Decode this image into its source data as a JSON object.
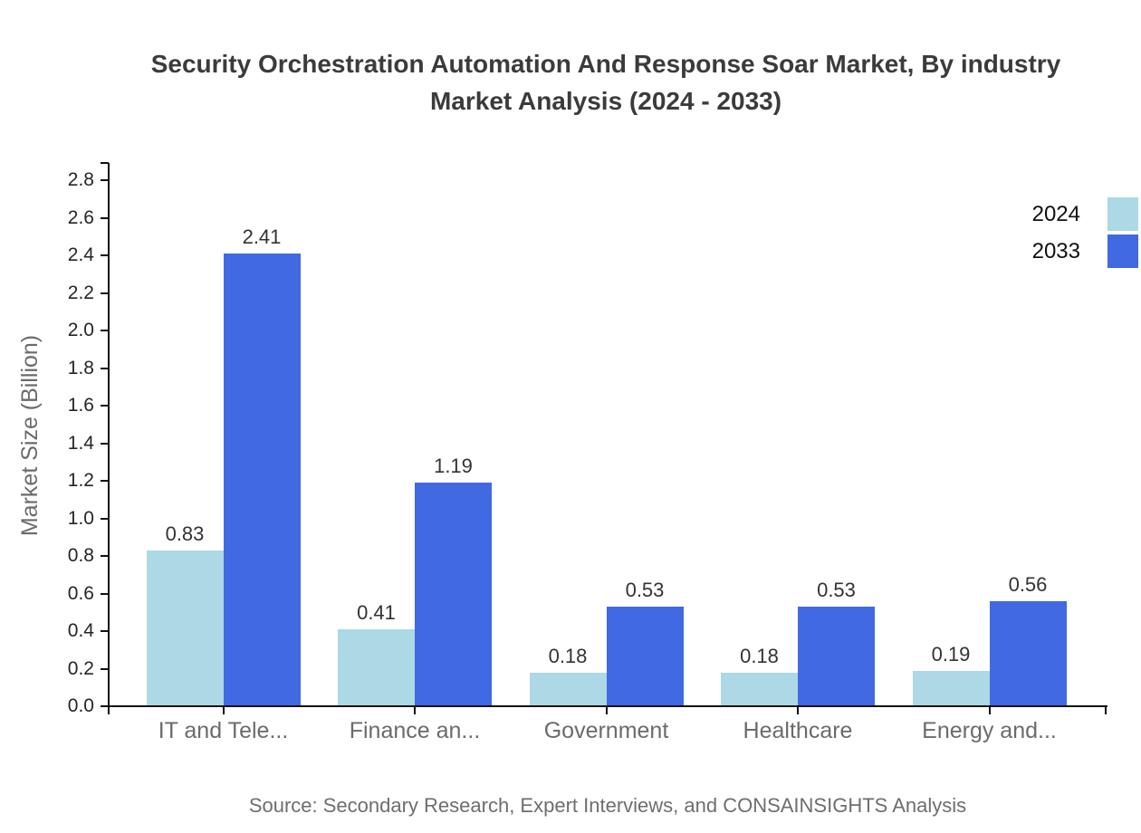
{
  "page": {
    "background": "#ffffff"
  },
  "title": {
    "full": "Security Orchestration Automation And Response Soar Market, By industry Market Analysis (2024 - 2033)",
    "lines": [
      "Security Orchestration Automation And Response Soar Market, By industry",
      "Market Analysis (2024 - 2033)"
    ]
  },
  "y_axis": {
    "label": "Market Size (Billion)"
  },
  "legend": {
    "position": "top-right",
    "items": [
      {
        "label": "2024",
        "color": "#ADD8E6"
      },
      {
        "label": "2033",
        "color": "#4169E1"
      }
    ]
  },
  "source": {
    "text": "Source: Secondary Research, Expert Interviews, and CONSAINSIGHTS Analysis"
  },
  "colors": {
    "series_2024": "#ADD8E6",
    "series_2033": "#4169E1",
    "axis": "#111111",
    "title_text": "#3b3b3b",
    "tick_label_text": "#262626",
    "value_label_text": "#333333",
    "category_text": "#6b6b6b",
    "source_text": "#6e6e6e"
  },
  "chart_data": {
    "type": "bar",
    "title": "Security Orchestration Automation And Response Soar Market, By industry Market Analysis (2024 - 2033)",
    "categories": [
      "IT and Tele...",
      "Finance an...",
      "Government",
      "Healthcare",
      "Energy and..."
    ],
    "series": [
      {
        "name": "2024",
        "color": "#ADD8E6",
        "values": [
          0.83,
          0.41,
          0.18,
          0.18,
          0.19
        ],
        "labels": [
          "0.83",
          "0.41",
          "0.18",
          "0.18",
          "0.19"
        ]
      },
      {
        "name": "2033",
        "color": "#4169E1",
        "values": [
          2.41,
          1.19,
          0.53,
          0.53,
          0.56
        ],
        "labels": [
          "2.41",
          "1.19",
          "0.53",
          "0.53",
          "0.56"
        ]
      }
    ],
    "xlabel": "",
    "ylabel": "Market Size (Billion)",
    "ylim": [
      0,
      2.89
    ],
    "yticks": [
      0.0,
      0.2,
      0.4,
      0.6,
      0.8,
      1.0,
      1.2,
      1.4,
      1.6,
      1.8,
      2.0,
      2.2,
      2.4,
      2.6,
      2.8
    ],
    "ytick_labels": [
      "0.0",
      "0.2",
      "0.4",
      "0.6",
      "0.8",
      "1.0",
      "1.2",
      "1.4",
      "1.6",
      "1.8",
      "2.0",
      "2.2",
      "2.4",
      "2.6",
      "2.8"
    ],
    "grid": false,
    "legend_position": "top-right"
  }
}
